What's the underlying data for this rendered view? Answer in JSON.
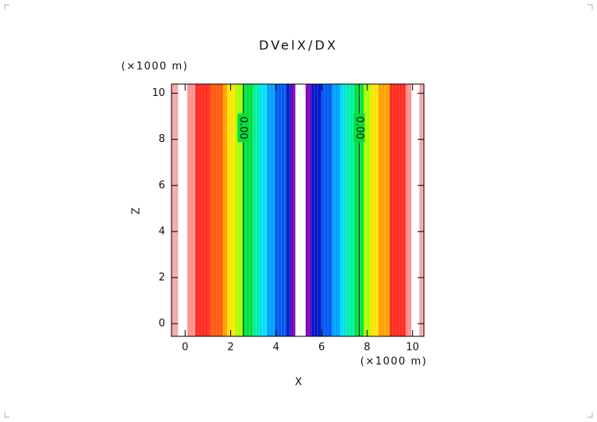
{
  "chart_data": {
    "type": "bands",
    "title": "DVelX/DX",
    "x_label": "X",
    "y_label": "Z",
    "x_unit": "(×1000 m)",
    "y_unit": "(×1000 m)",
    "xlim": [
      -0.6,
      10.5
    ],
    "ylim": [
      -0.55,
      10.4
    ],
    "xticks": [
      0,
      2,
      4,
      6,
      8,
      10
    ],
    "yticks": [
      0,
      2,
      4,
      6,
      8,
      10
    ],
    "edges": [
      -0.6,
      -0.3,
      0.1,
      0.45,
      1.1,
      1.65,
      1.85,
      2.2,
      2.55,
      3.0,
      3.25,
      3.6,
      3.95,
      4.45,
      4.65,
      4.85,
      5.3,
      5.55,
      6.0,
      6.45,
      6.8,
      7.1,
      7.45,
      7.85,
      8.15,
      8.5,
      9.0,
      9.7,
      9.95,
      10.3,
      10.5
    ],
    "colors": [
      "#f4a8a8",
      "#ffffff",
      "#ff9090",
      "#ff2a20",
      "#ff5810",
      "#ffa000",
      "#ffe400",
      "#a8ff00",
      "#00e040",
      "#00f0a0",
      "#00e0f0",
      "#00a0ff",
      "#0058f0",
      "#0020c0",
      "#8000c0",
      "#ffffff",
      "#8000c0",
      "#0018c8",
      "#0058f0",
      "#00a0ff",
      "#00e0f0",
      "#00f0a0",
      "#00e040",
      "#a8ff00",
      "#ffe400",
      "#ffa000",
      "#ff2a20",
      "#ff9090",
      "#ffffff",
      "#f4a8a8"
    ],
    "contour_labels": [
      {
        "x": 2.55,
        "y": 8.5,
        "value": 0,
        "label": "0.00"
      },
      {
        "x": 7.65,
        "y": 8.5,
        "value": 0,
        "label": "0.00"
      }
    ]
  }
}
